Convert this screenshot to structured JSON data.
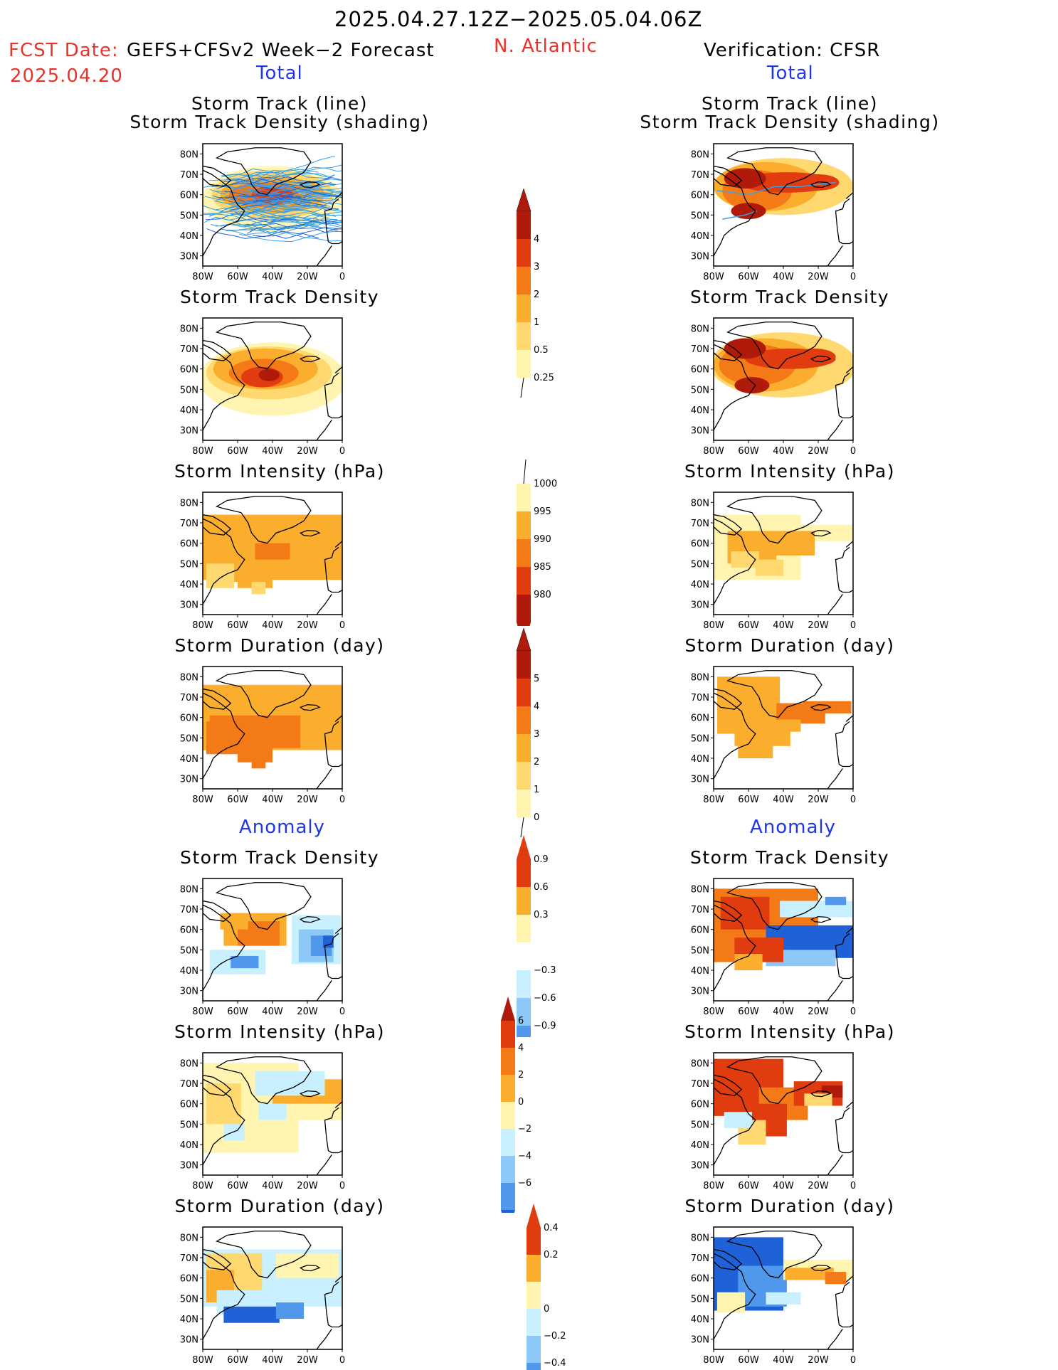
{
  "header": {
    "date_range": "2025.04.27.12Z−2025.05.04.06Z",
    "fcst_date_label": "FCST Date:",
    "fcst_model": "GEFS+CFSv2 Week−2 Forecast",
    "fcst_date": "2025.04.20",
    "region": "N. Atlantic",
    "verification": "Verification: CFSR",
    "total_left": "Total",
    "total_right": "Total",
    "anomaly_left": "Anomaly",
    "anomaly_right": "Anomaly"
  },
  "panel_titles": {
    "track_line": "Storm Track (line)",
    "track_density_shading": "Storm Track Density (shading)",
    "track_density": "Storm Track Density",
    "intensity": "Storm Intensity (hPa)",
    "duration": "Storm Duration (day)"
  },
  "axes": {
    "lat_labels": [
      "80N",
      "70N",
      "60N",
      "50N",
      "40N",
      "30N"
    ],
    "lon_labels": [
      "80W",
      "60W",
      "40W",
      "20W",
      "0"
    ]
  },
  "colorbars": {
    "track_density_total": [
      "4",
      "3",
      "2",
      "1",
      "0.5",
      "0.25"
    ],
    "intensity_total": [
      "1000",
      "995",
      "990",
      "985",
      "980"
    ],
    "duration_total": [
      "5",
      "4",
      "3",
      "2",
      "1",
      "0"
    ],
    "track_density_anom": [
      "0.9",
      "0.6",
      "0.3",
      "−0.3",
      "−0.6",
      "−0.9"
    ],
    "intensity_anom": [
      "6",
      "4",
      "2",
      "0",
      "−2",
      "−4",
      "−6"
    ],
    "duration_anom": [
      "0.4",
      "0.2",
      "0",
      "−0.2",
      "−0.4"
    ]
  },
  "colors": {
    "title_red": "#e8322a",
    "title_blue": "#1f35e8",
    "warm": [
      "#fff5b0",
      "#ffd970",
      "#fbae2e",
      "#f47a18",
      "#e03c10",
      "#b01a0a"
    ],
    "cool": [
      "#c8f0ff",
      "#8ec8f6",
      "#4f98ec",
      "#1f62d8"
    ]
  }
}
